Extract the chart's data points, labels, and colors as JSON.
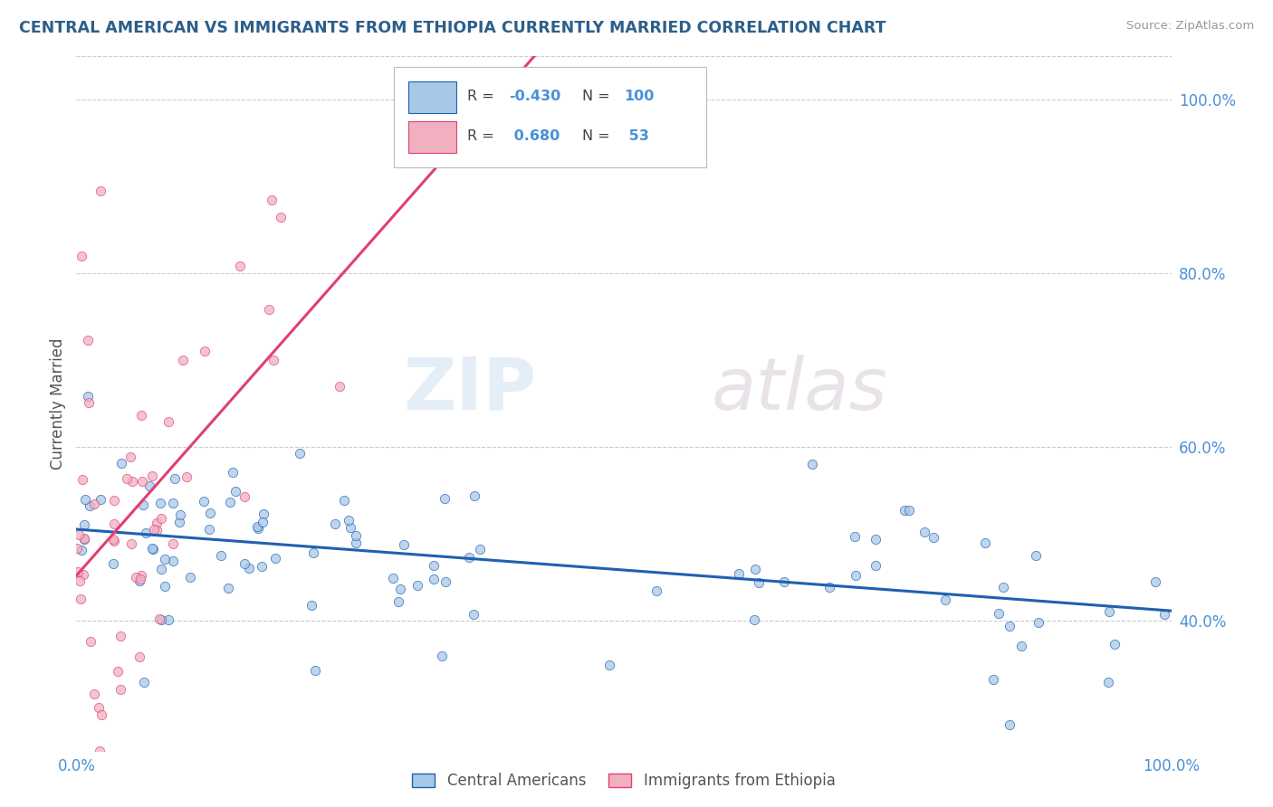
{
  "title": "CENTRAL AMERICAN VS IMMIGRANTS FROM ETHIOPIA CURRENTLY MARRIED CORRELATION CHART",
  "source": "Source: ZipAtlas.com",
  "ylabel": "Currently Married",
  "xlabel": "",
  "legend_labels_bottom": [
    "Central Americans",
    "Immigrants from Ethiopia"
  ],
  "watermark_zip": "ZIP",
  "watermark_atlas": "atlas",
  "background_color": "#ffffff",
  "grid_color": "#cccccc",
  "title_color": "#2c5f8a",
  "axis_color": "#4a90d9",
  "blue_scatter_color": "#a8c8e8",
  "pink_scatter_color": "#f0b0c0",
  "blue_line_color": "#2060b0",
  "pink_line_color": "#e04070",
  "pink_dash_color": "#f0b0c0",
  "xmin": 0.0,
  "xmax": 1.0,
  "ymin": 0.25,
  "ymax": 1.05,
  "yticks": [
    0.4,
    0.6,
    0.8,
    1.0
  ],
  "ytick_labels": [
    "40.0%",
    "60.0%",
    "80.0%",
    "100.0%"
  ],
  "xticks": [
    0.0,
    1.0
  ],
  "xtick_labels": [
    "0.0%",
    "100.0%"
  ],
  "r_blue": -0.43,
  "n_blue": 100,
  "r_pink": 0.68,
  "n_pink": 53
}
